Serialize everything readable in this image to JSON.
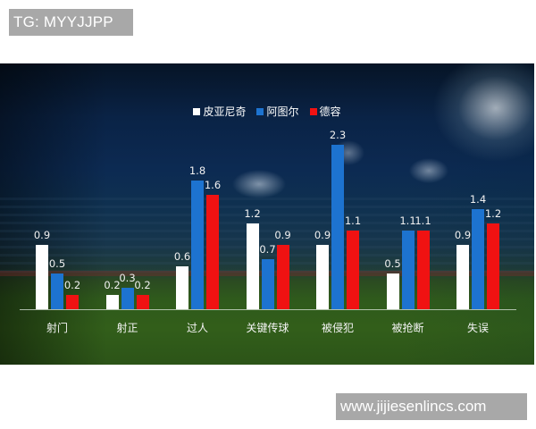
{
  "watermarks": {
    "top": "TG: MYYJJPP",
    "bottom": "www.jijiesenlincs.com"
  },
  "colors": {
    "series_1": "#ffffff",
    "series_2": "#1d73d0",
    "series_3": "#f01212"
  },
  "legend": [
    {
      "label": "皮亚尼奇",
      "color": "#ffffff"
    },
    {
      "label": "阿图尔",
      "color": "#1d73d0"
    },
    {
      "label": "德容",
      "color": "#f01212"
    }
  ],
  "groups": [
    {
      "label": "射门",
      "values": [
        "0.9",
        "0.5",
        "0.2"
      ]
    },
    {
      "label": "射正",
      "values": [
        "0.2",
        "0.3",
        "0.2"
      ]
    },
    {
      "label": "过人",
      "values": [
        "0.6",
        "1.8",
        "1.6"
      ]
    },
    {
      "label": "关键传球",
      "values": [
        "1.2",
        "0.7",
        "0.9"
      ]
    },
    {
      "label": "被侵犯",
      "values": [
        "0.9",
        "2.3",
        "1.1"
      ]
    },
    {
      "label": "被抢断",
      "values": [
        "0.5",
        "1.1",
        "1.1"
      ]
    },
    {
      "label": "失误",
      "values": [
        "0.9",
        "1.4",
        "1.2"
      ]
    }
  ],
  "chart_data": {
    "type": "bar",
    "title": "",
    "xlabel": "",
    "ylabel": "",
    "categories": [
      "射门",
      "射正",
      "过人",
      "关键传球",
      "被侵犯",
      "被抢断",
      "失误"
    ],
    "series": [
      {
        "name": "皮亚尼奇",
        "color": "#ffffff",
        "values": [
          0.9,
          0.2,
          0.6,
          1.2,
          0.9,
          0.5,
          0.9
        ]
      },
      {
        "name": "阿图尔",
        "color": "#1d73d0",
        "values": [
          0.5,
          0.3,
          1.8,
          0.7,
          2.3,
          1.1,
          1.4
        ]
      },
      {
        "name": "德容",
        "color": "#f01212",
        "values": [
          0.2,
          0.2,
          1.6,
          0.9,
          1.1,
          1.1,
          1.2
        ]
      }
    ],
    "ylim": [
      0,
      2.5
    ],
    "grid": false,
    "axis_visible": false,
    "data_labels": true,
    "legend_position": "top-center"
  }
}
